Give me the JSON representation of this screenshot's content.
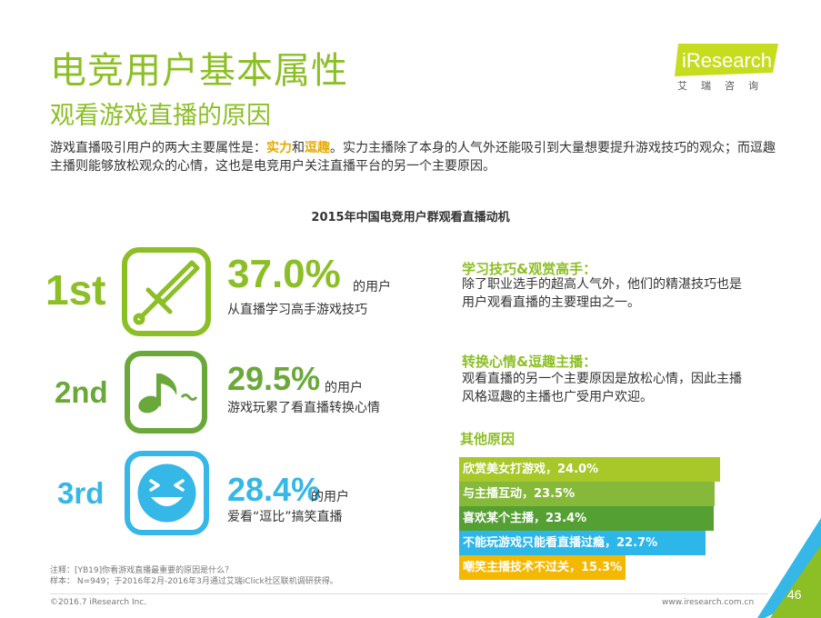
{
  "header": {
    "title": "电竞用户基本属性",
    "subtitle": "观看游戏直播的原因"
  },
  "logo": {
    "brand": "iResearch",
    "chinese": "艾瑞咨询",
    "color": "#c6dc1e"
  },
  "intro": {
    "part1": "游戏直播吸引用户的两大主要属性是：",
    "highlight1": "实力",
    "part2": "和",
    "highlight2": "逗趣",
    "part3": "。实力主播除了本身的人气外还能吸引到大量想要提升游戏技巧的观众；而逗趣主播则能够放松观众的心情，这也是电竞用户关注直播平台的另一个主要原因。"
  },
  "chart_title": "2015年中国电竞用户群观看直播动机",
  "rankings": [
    {
      "rank": "1st",
      "percent": "37.0%",
      "unit": "的用户",
      "description": "从直播学习高手游戏技巧",
      "icon": "sword-icon",
      "color": "#8cbf26"
    },
    {
      "rank": "2nd",
      "percent": "29.5%",
      "unit": "的用户",
      "description": "游戏玩累了看直播转换心情",
      "icon": "music-note-icon",
      "color": "#6aa83a"
    },
    {
      "rank": "3rd",
      "percent": "28.4%",
      "unit": "的用户",
      "description": "爱看“逗比”搞笑直播",
      "icon": "laughing-face-icon",
      "color": "#35b7e8"
    }
  ],
  "reasons": [
    {
      "title": "学习技巧&观赏高手：",
      "text": "除了职业选手的超高人气外，他们的精湛技巧也是用户观看直播的主要理由之一。"
    },
    {
      "title": "转换心情&逗趣主播：",
      "text": "观看直播的另一个主要原因是放松心情，因此主播风格逗趣的主播也广受用户欢迎。"
    }
  ],
  "other": {
    "title": "其他原因",
    "items": [
      {
        "label": "欣赏美女打游戏，24.0%",
        "value": 24.0,
        "color": "#a8c82a"
      },
      {
        "label": "与主播互动，23.5%",
        "value": 23.5,
        "color": "#86b83a"
      },
      {
        "label": "喜欢某个主播，23.4%",
        "value": 23.4,
        "color": "#55a033"
      },
      {
        "label": "不能玩游戏只能看直播过瘾，22.7%",
        "value": 22.7,
        "color": "#2db6e8"
      },
      {
        "label": "嘲笑主播技术不过关，15.3%",
        "value": 15.3,
        "color": "#f5b800"
      }
    ]
  },
  "notes": {
    "line1": "注释：[YB19]你看游戏直播最重要的原因是什么？",
    "line2": "样本： N=949；于2016年2月-2016年3月通过艾瑞iClick社区联机调研获得。"
  },
  "footer": {
    "copyright": "©2016.7 iResearch Inc.",
    "website": "www.iresearch.com.cn",
    "page": "46"
  }
}
